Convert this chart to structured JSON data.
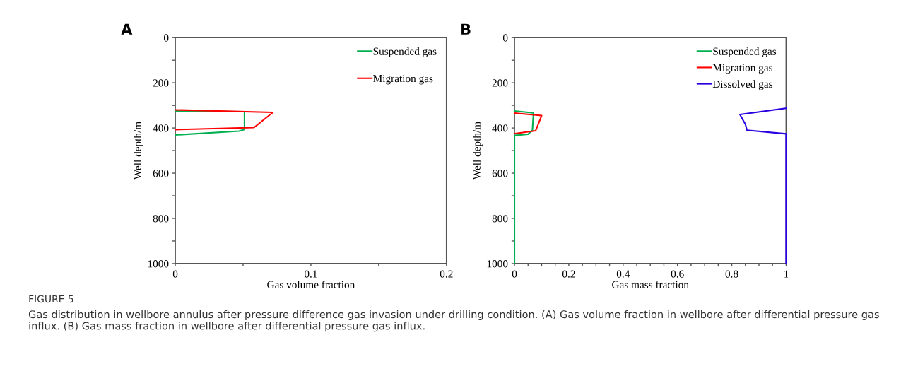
{
  "chart_data": [
    {
      "type": "line",
      "xlabel": "Gas volume fraction",
      "ylabel": "Well depth/m",
      "annotations": [
        "A",
        "FIGURE 5",
        "Gas distribution in wellbore annulus after pressure difference gas invasion under drilling condition. (A) Gas volume fraction in wellbore after differential pressure gas influx. (B) Gas mass fraction in wellbore after differential pressure gas influx."
      ],
      "xlim": [
        0,
        0.2
      ],
      "xticks": [
        0,
        {
          "value": 0.05,
          "label": null
        },
        0.1,
        {
          "value": 0.15,
          "label": null
        },
        0.2
      ],
      "ylim": [
        1000,
        0
      ],
      "yticks": [
        0,
        {
          "value": 100,
          "label": null
        },
        200,
        {
          "value": 300,
          "label": null
        },
        400,
        {
          "value": 500,
          "label": null
        },
        600,
        {
          "value": 700,
          "label": null
        },
        800,
        {
          "value": 900,
          "label": null
        },
        1000
      ],
      "legend": "top right",
      "grid": false,
      "series": [
        {
          "name": "Suspended gas",
          "color": "#00b050",
          "x": [
            0,
            0.051,
            0.051,
            0.047,
            0
          ],
          "values": [
            325,
            328,
            407,
            414,
            431
          ]
        },
        {
          "name": "Migration gas",
          "color": "#ff0000",
          "x": [
            0,
            0.072,
            0.058,
            0
          ],
          "values": [
            320,
            331,
            398,
            407
          ]
        }
      ]
    },
    {
      "type": "line",
      "xlabel": "Gas mass fraction",
      "ylabel": "Well depth/m",
      "annotations": [
        "B"
      ],
      "xlim": [
        0,
        1
      ],
      "xticks": [
        0,
        {
          "value": 0.05,
          "label": null
        },
        {
          "value": 0.1,
          "label": null
        },
        {
          "value": 0.15,
          "label": null
        },
        0.2,
        {
          "value": 0.25,
          "label": null
        },
        {
          "value": 0.3,
          "label": null
        },
        {
          "value": 0.35,
          "label": null
        },
        0.4,
        {
          "value": 0.45,
          "label": null
        },
        {
          "value": 0.5,
          "label": null
        },
        {
          "value": 0.55,
          "label": null
        },
        0.6,
        {
          "value": 0.65,
          "label": null
        },
        {
          "value": 0.7,
          "label": null
        },
        {
          "value": 0.75,
          "label": null
        },
        0.8,
        {
          "value": 0.85,
          "label": null
        },
        {
          "value": 0.9,
          "label": null
        },
        {
          "value": 0.95,
          "label": null
        },
        1
      ],
      "ylim": [
        1000,
        0
      ],
      "yticks": [
        0,
        {
          "value": 100,
          "label": null
        },
        200,
        {
          "value": 300,
          "label": null
        },
        400,
        {
          "value": 500,
          "label": null
        },
        600,
        {
          "value": 700,
          "label": null
        },
        800,
        {
          "value": 900,
          "label": null
        },
        1000
      ],
      "legend": "top right",
      "grid": false,
      "series": [
        {
          "name": "Suspended gas",
          "color": "#00b050",
          "x": [
            0,
            0.07,
            0.066,
            0.05,
            0,
            0
          ],
          "values": [
            325,
            333,
            410,
            428,
            433,
            1000
          ]
        },
        {
          "name": "Migration gas",
          "color": "#ff0000",
          "x": [
            0,
            0.1,
            0.078,
            0
          ],
          "values": [
            334,
            345,
            412,
            425
          ]
        },
        {
          "name": "Dissolved gas",
          "color": "#2a00e0",
          "x": [
            1,
            0.83,
            0.85,
            0.856,
            1,
            1
          ],
          "values": [
            313,
            340,
            383,
            410,
            426,
            1000
          ]
        }
      ]
    }
  ]
}
